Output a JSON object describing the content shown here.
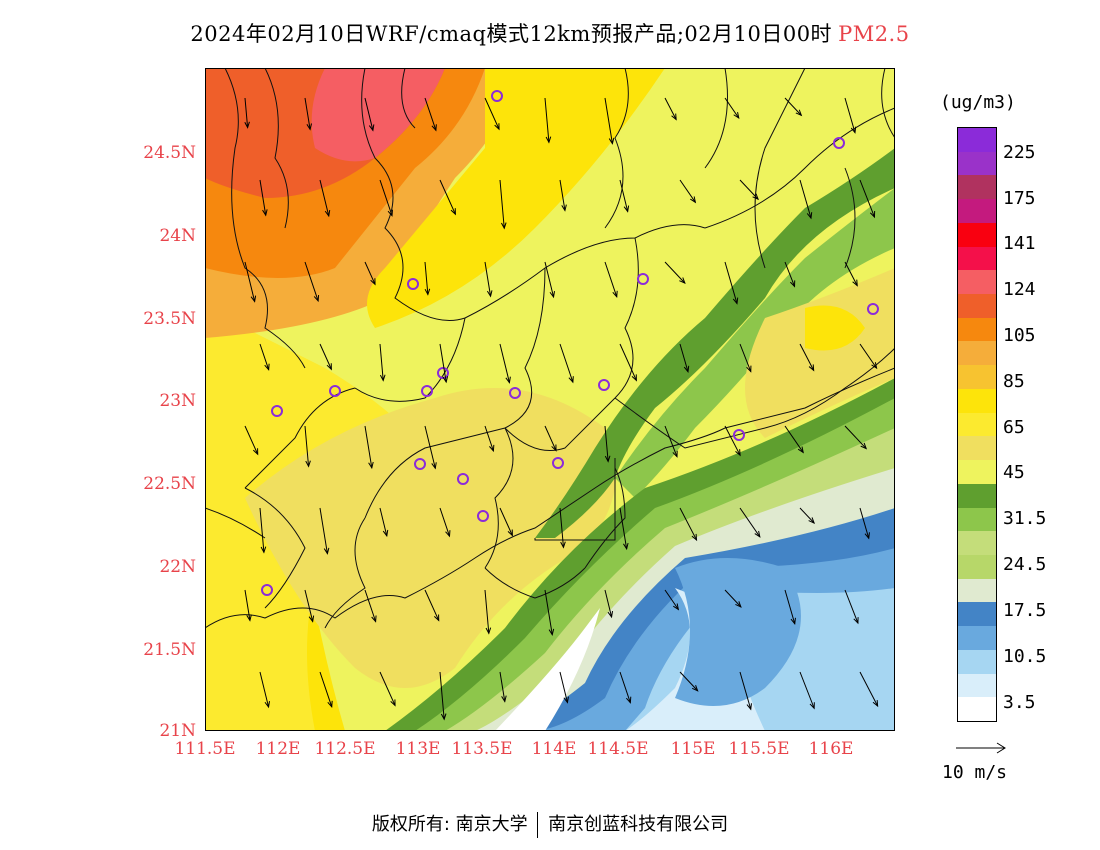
{
  "header": {
    "title": "2024年02月10日WRF/cmaq模式12km预报产品;02月10日00时",
    "pollutant": "PM2.5"
  },
  "map": {
    "lat_labels": [
      "24.5N",
      "24N",
      "23.5N",
      "23N",
      "22.5N",
      "22N",
      "21.5N",
      "21N"
    ],
    "lon_labels": [
      "111.5E",
      "112E",
      "112.5E",
      "113E",
      "113.5E",
      "114E",
      "114.5E",
      "115E",
      "115.5E",
      "116E"
    ],
    "lon_range": [
      111.5,
      116.3
    ],
    "lat_range": [
      21.0,
      25.0
    ]
  },
  "legend": {
    "unit": "(ug/m3)",
    "labels": [
      "225",
      "175",
      "141",
      "124",
      "105",
      "85",
      "65",
      "45",
      "31.5",
      "24.5",
      "17.5",
      "10.5",
      "3.5"
    ],
    "colors": [
      "#8b2bd9",
      "#9a32c9",
      "#b0325f",
      "#c41a7e",
      "#f90010",
      "#f4104a",
      "#f55e63",
      "#ef5f2a",
      "#f6880e",
      "#f5ad3a",
      "#f7c330",
      "#fde40a",
      "#fcea2f",
      "#f0df5f",
      "#eef35e",
      "#5f9f2f",
      "#8dc64b",
      "#c4dd7a",
      "#b7d769",
      "#e0ead0",
      "#4384c6",
      "#69a9de",
      "#a6d6f2",
      "#d9eefa",
      "#ffffff"
    ]
  },
  "wind_reference": {
    "label": "10 m/s"
  },
  "footer": {
    "copyright_label": "版权所有:",
    "org1": "南京大学",
    "org2": "南京创蓝科技有限公司"
  }
}
